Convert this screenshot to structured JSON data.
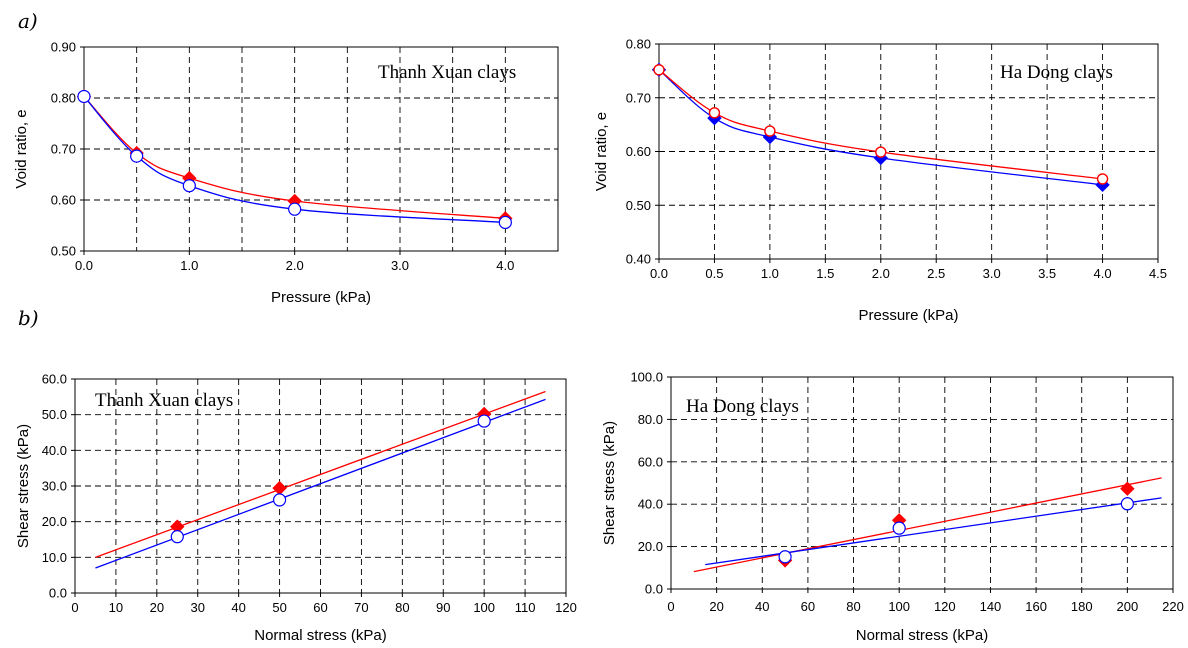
{
  "panel_labels": {
    "a": "a)",
    "b": "b)"
  },
  "chart_data": [
    {
      "type": "line",
      "title": "Thanh Xuan clays",
      "xlabel": "Pressure (kPa)",
      "ylabel": "Void ratio, e",
      "xlim": [
        0,
        4.5
      ],
      "ylim": [
        0.5,
        0.9
      ],
      "xticks": [
        0,
        1,
        2,
        3,
        4
      ],
      "xtick_labels": [
        "0.0",
        "1.0",
        "2.0",
        "3.0",
        "4.0"
      ],
      "yticks": [
        0.5,
        0.6,
        0.7,
        0.8,
        0.9
      ],
      "ytick_labels": [
        "0.50",
        "0.60",
        "0.70",
        "0.80",
        "0.90"
      ],
      "xgrid": [
        0.5,
        1.0,
        1.5,
        2.0,
        2.5,
        3.0,
        3.5,
        4.0
      ],
      "ygrid": [
        0.6,
        0.7,
        0.8
      ],
      "grid": true,
      "series": [
        {
          "color": "#ff0000",
          "marker": "diamond-filled",
          "x": [
            0,
            0.5,
            1.0,
            2.0,
            4.0
          ],
          "y": [
            0.803,
            0.692,
            0.643,
            0.598,
            0.564
          ]
        },
        {
          "color": "#0000ff",
          "marker": "circle-open",
          "x": [
            0,
            0.5,
            1.0,
            2.0,
            4.0
          ],
          "y": [
            0.803,
            0.686,
            0.628,
            0.582,
            0.556
          ]
        }
      ]
    },
    {
      "type": "line",
      "title": "Ha Dong clays",
      "xlabel": "Pressure (kPa)",
      "ylabel": "Void ratio, e",
      "xlim": [
        0,
        4.5
      ],
      "ylim": [
        0.4,
        0.8
      ],
      "xticks": [
        0,
        0.5,
        1.0,
        1.5,
        2.0,
        2.5,
        3.0,
        3.5,
        4.0,
        4.5
      ],
      "xtick_labels": [
        "0.0",
        "0.5",
        "1.0",
        "1.5",
        "2.0",
        "2.5",
        "3.0",
        "3.5",
        "4.0",
        "4.5"
      ],
      "yticks": [
        0.4,
        0.5,
        0.6,
        0.7,
        0.8
      ],
      "ytick_labels": [
        "0.40",
        "0.50",
        "0.60",
        "0.70",
        "0.80"
      ],
      "xgrid": [
        0.5,
        1.0,
        1.5,
        2.0,
        2.5,
        3.0,
        3.5,
        4.0
      ],
      "ygrid": [
        0.5,
        0.6,
        0.7
      ],
      "grid": true,
      "series": [
        {
          "color": "#0000ff",
          "marker": "diamond-filled",
          "x": [
            0,
            0.5,
            1.0,
            2.0,
            4.0
          ],
          "y": [
            0.752,
            0.662,
            0.627,
            0.588,
            0.538
          ]
        },
        {
          "color": "#ff0000",
          "marker": "circle-open-red",
          "x": [
            0,
            0.5,
            1.0,
            2.0,
            4.0
          ],
          "y": [
            0.752,
            0.672,
            0.638,
            0.599,
            0.549
          ]
        }
      ]
    },
    {
      "type": "scatter",
      "title": "Thanh Xuan clays",
      "xlabel": "Normal stress (kPa)",
      "ylabel": "Shear stress (kPa)",
      "xlim": [
        0,
        120
      ],
      "ylim": [
        0,
        60
      ],
      "xticks": [
        0,
        10,
        20,
        30,
        40,
        50,
        60,
        70,
        80,
        90,
        100,
        110,
        120
      ],
      "xtick_labels": [
        "0",
        "10",
        "20",
        "30",
        "40",
        "50",
        "60",
        "70",
        "80",
        "90",
        "100",
        "110",
        "120"
      ],
      "yticks": [
        0,
        10,
        20,
        30,
        40,
        50,
        60
      ],
      "ytick_labels": [
        "0.0",
        "10.0",
        "20.0",
        "30.0",
        "40.0",
        "50.0",
        "60.0"
      ],
      "xgrid": [
        10,
        20,
        30,
        40,
        50,
        60,
        70,
        80,
        90,
        100,
        110
      ],
      "ygrid": [
        10,
        20,
        30,
        40,
        50
      ],
      "grid": true,
      "series": [
        {
          "color": "#ff0000",
          "marker": "diamond-filled",
          "x": [
            25,
            50,
            100
          ],
          "y": [
            18.6,
            29.4,
            50.2
          ],
          "fit": [
            [
              5,
              10.0
            ],
            [
              115,
              56.5
            ]
          ]
        },
        {
          "color": "#0000ff",
          "marker": "circle-open",
          "x": [
            25,
            50,
            100
          ],
          "y": [
            15.8,
            26.1,
            48.2
          ],
          "fit": [
            [
              5,
              7.0
            ],
            [
              115,
              54.3
            ]
          ]
        }
      ]
    },
    {
      "type": "scatter",
      "title": "Ha Dong clays",
      "xlabel": "Normal stress (kPa)",
      "ylabel": "Shear stress (kPa)",
      "xlim": [
        0,
        220
      ],
      "ylim": [
        0,
        100
      ],
      "xticks": [
        0,
        20,
        40,
        60,
        80,
        100,
        120,
        140,
        160,
        180,
        200,
        220
      ],
      "xtick_labels": [
        "0",
        "20",
        "40",
        "60",
        "80",
        "100",
        "120",
        "140",
        "160",
        "180",
        "200",
        "220"
      ],
      "yticks": [
        0,
        20,
        40,
        60,
        80,
        100
      ],
      "ytick_labels": [
        "0.0",
        "20.0",
        "40.0",
        "60.0",
        "80.0",
        "100.0"
      ],
      "xgrid": [
        20,
        40,
        60,
        80,
        100,
        120,
        140,
        160,
        180,
        200
      ],
      "ygrid": [
        20,
        40,
        60,
        80
      ],
      "grid": true,
      "series": [
        {
          "color": "#ff0000",
          "marker": "diamond-filled",
          "x": [
            50,
            100,
            200
          ],
          "y": [
            13.5,
            32.4,
            47.3
          ],
          "fit": [
            [
              10,
              8.2
            ],
            [
              215,
              52.4
            ]
          ]
        },
        {
          "color": "#0000ff",
          "marker": "circle-open",
          "x": [
            50,
            100,
            200
          ],
          "y": [
            15.2,
            28.7,
            40.2
          ],
          "fit": [
            [
              15,
              11.5
            ],
            [
              215,
              43.0
            ]
          ]
        }
      ]
    }
  ]
}
